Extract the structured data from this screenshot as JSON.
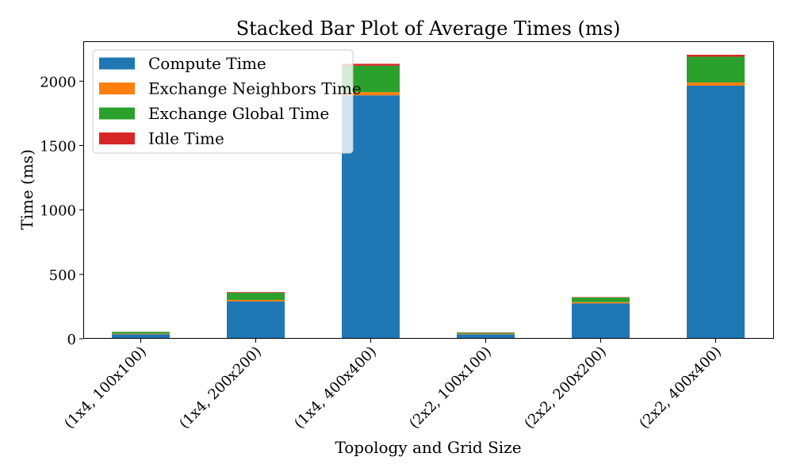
{
  "chart_data": {
    "type": "bar",
    "stacked": true,
    "title": "Stacked Bar Plot of Average Times (ms)",
    "xlabel": "Topology and Grid Size",
    "ylabel": "Time (ms)",
    "ylim": [
      0,
      2310
    ],
    "yticks": [
      0,
      500,
      1000,
      1500,
      2000
    ],
    "grid": false,
    "legend_position": "top-left",
    "categories": [
      "(1x4, 100x100)",
      "(1x4, 200x200)",
      "(1x4, 400x400)",
      "(2x2, 100x100)",
      "(2x2, 200x200)",
      "(2x2, 400x400)"
    ],
    "series": [
      {
        "name": "Compute Time",
        "color": "#1f77b4",
        "values": [
          35,
          290,
          1890,
          35,
          275,
          1965
        ]
      },
      {
        "name": "Exchange Neighbors Time",
        "color": "#ff7f0e",
        "values": [
          4,
          12,
          25,
          5,
          10,
          25
        ]
      },
      {
        "name": "Exchange Global Time",
        "color": "#2ca02c",
        "values": [
          14,
          55,
          205,
          8,
          35,
          200
        ]
      },
      {
        "name": "Idle Time",
        "color": "#d62728",
        "values": [
          1,
          5,
          15,
          2,
          3,
          15
        ]
      }
    ]
  }
}
